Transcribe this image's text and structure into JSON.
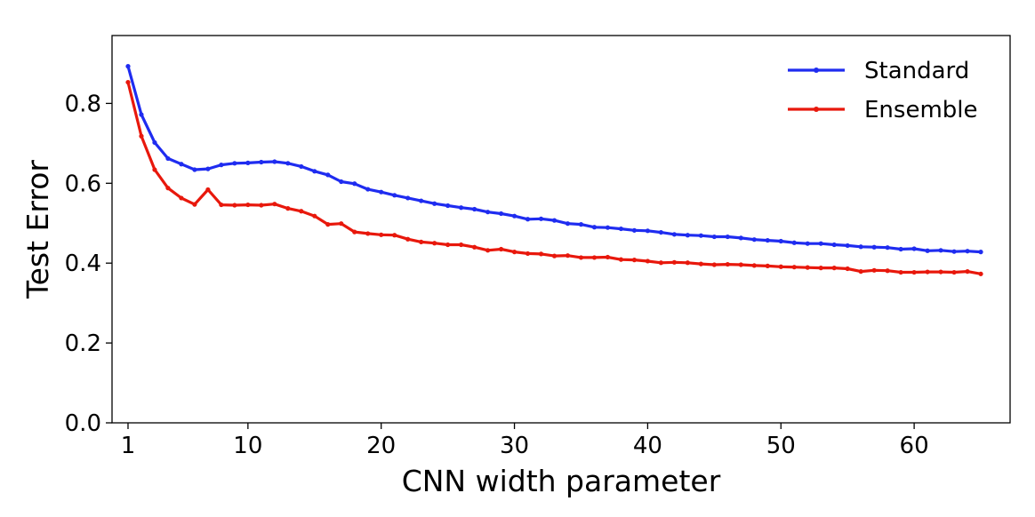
{
  "chart_data": {
    "type": "line",
    "title": "",
    "xlabel": "CNN width parameter",
    "ylabel": "Test Error",
    "xlim": [
      -0.2,
      67.2
    ],
    "ylim": [
      0.0,
      0.97
    ],
    "xticks": [
      1,
      10,
      20,
      30,
      40,
      50,
      60
    ],
    "xtick_labels": [
      "1",
      "10",
      "20",
      "30",
      "40",
      "50",
      "60"
    ],
    "yticks": [
      0.0,
      0.2,
      0.4,
      0.6,
      0.8
    ],
    "ytick_labels": [
      "0.0",
      "0.2",
      "0.4",
      "0.6",
      "0.8"
    ],
    "grid": false,
    "legend_position": "top-right",
    "x": [
      1,
      2,
      3,
      4,
      5,
      6,
      7,
      8,
      9,
      10,
      11,
      12,
      13,
      14,
      15,
      16,
      17,
      18,
      19,
      20,
      21,
      22,
      23,
      24,
      25,
      26,
      27,
      28,
      29,
      30,
      31,
      32,
      33,
      34,
      35,
      36,
      37,
      38,
      39,
      40,
      41,
      42,
      43,
      44,
      45,
      46,
      47,
      48,
      49,
      50,
      51,
      52,
      53,
      54,
      55,
      56,
      57,
      58,
      59,
      60,
      61,
      62,
      63,
      64,
      65
    ],
    "series": [
      {
        "name": "Standard",
        "color": "#1f2cf0",
        "values": [
          0.893,
          0.772,
          0.702,
          0.662,
          0.648,
          0.634,
          0.636,
          0.646,
          0.65,
          0.651,
          0.653,
          0.654,
          0.65,
          0.642,
          0.63,
          0.621,
          0.604,
          0.599,
          0.585,
          0.578,
          0.57,
          0.563,
          0.556,
          0.549,
          0.544,
          0.539,
          0.535,
          0.528,
          0.524,
          0.518,
          0.51,
          0.511,
          0.507,
          0.499,
          0.497,
          0.49,
          0.489,
          0.486,
          0.482,
          0.481,
          0.477,
          0.472,
          0.47,
          0.469,
          0.466,
          0.466,
          0.463,
          0.459,
          0.457,
          0.455,
          0.451,
          0.449,
          0.449,
          0.446,
          0.444,
          0.441,
          0.44,
          0.439,
          0.435,
          0.436,
          0.431,
          0.432,
          0.429,
          0.43,
          0.428
        ]
      },
      {
        "name": "Ensemble",
        "color": "#e8180c",
        "values": [
          0.853,
          0.718,
          0.634,
          0.588,
          0.563,
          0.547,
          0.584,
          0.546,
          0.545,
          0.546,
          0.545,
          0.548,
          0.537,
          0.53,
          0.518,
          0.497,
          0.499,
          0.478,
          0.474,
          0.471,
          0.47,
          0.46,
          0.453,
          0.45,
          0.446,
          0.446,
          0.44,
          0.432,
          0.435,
          0.428,
          0.424,
          0.423,
          0.418,
          0.419,
          0.414,
          0.414,
          0.415,
          0.409,
          0.408,
          0.405,
          0.401,
          0.402,
          0.401,
          0.398,
          0.396,
          0.397,
          0.396,
          0.394,
          0.393,
          0.391,
          0.39,
          0.389,
          0.388,
          0.388,
          0.386,
          0.379,
          0.382,
          0.381,
          0.377,
          0.377,
          0.378,
          0.378,
          0.377,
          0.379,
          0.373
        ]
      }
    ]
  }
}
